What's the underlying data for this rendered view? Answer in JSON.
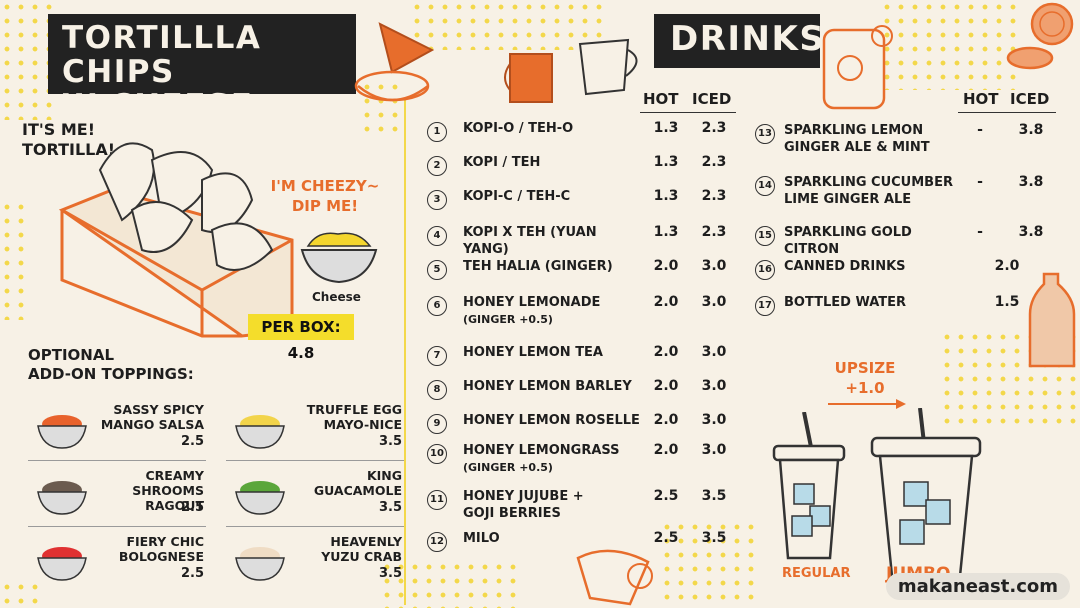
{
  "chips_section": {
    "title_line1": "TORTILLLA CHIPS",
    "title_line2": "W CHEESE SAUCE",
    "mascot_text_line1": "IT'S ME!",
    "mascot_text_line2": "TORTILLA!",
    "cheese_text_line1": "I'M CHEEZY~",
    "cheese_text_line2": "DIP ME!",
    "cheese_label": "Cheese",
    "price_label": "PER BOX: 4.8",
    "addon_title_line1": "OPTIONAL",
    "addon_title_line2": "ADD-ON TOPPINGS:",
    "toppings": [
      {
        "name_line1": "SASSY SPICY",
        "name_line2": "MANGO SALSA",
        "price": "2.5",
        "color": "#e8622c"
      },
      {
        "name_line1": "TRUFFLE EGG",
        "name_line2": "MAYO-NICE",
        "price": "3.5",
        "color": "#f2d44a"
      },
      {
        "name_line1": "CREAMY SHROOMS",
        "name_line2": "RAGOUT",
        "price": "2.5",
        "color": "#6b5b4f"
      },
      {
        "name_line1": "KING",
        "name_line2": "GUACAMOLE",
        "price": "3.5",
        "color": "#5aa63a"
      },
      {
        "name_line1": "FIERY CHIC",
        "name_line2": "BOLOGNESE",
        "price": "2.5",
        "color": "#e03131"
      },
      {
        "name_line1": "HEAVENLY",
        "name_line2": "YUZU CRAB",
        "price": "3.5",
        "color": "#efdcc4"
      }
    ]
  },
  "drinks_section": {
    "title": "DRINKS",
    "hot_label": "HOT",
    "iced_label": "ICED",
    "left_items": [
      {
        "num": "1",
        "name": "KOPI-O / TEH-O",
        "sub": "",
        "hot": "1.3",
        "iced": "2.3"
      },
      {
        "num": "2",
        "name": "KOPI / TEH",
        "sub": "",
        "hot": "1.3",
        "iced": "2.3"
      },
      {
        "num": "3",
        "name": "KOPI-C / TEH-C",
        "sub": "",
        "hot": "1.3",
        "iced": "2.3"
      },
      {
        "num": "4",
        "name": "KOPI X TEH (YUAN YANG)",
        "sub": "",
        "hot": "1.3",
        "iced": "2.3"
      },
      {
        "num": "5",
        "name": "TEH HALIA (GINGER)",
        "sub": "",
        "hot": "2.0",
        "iced": "3.0"
      },
      {
        "num": "6",
        "name": "HONEY LEMONADE",
        "sub": "(GINGER +0.5)",
        "hot": "2.0",
        "iced": "3.0"
      },
      {
        "num": "7",
        "name": "HONEY LEMON TEA",
        "sub": "",
        "hot": "2.0",
        "iced": "3.0"
      },
      {
        "num": "8",
        "name": "HONEY LEMON BARLEY",
        "sub": "",
        "hot": "2.0",
        "iced": "3.0"
      },
      {
        "num": "9",
        "name": "HONEY LEMON ROSELLE",
        "sub": "",
        "hot": "2.0",
        "iced": "3.0"
      },
      {
        "num": "10",
        "name": "HONEY LEMONGRASS",
        "sub": "(GINGER +0.5)",
        "hot": "2.0",
        "iced": "3.0"
      },
      {
        "num": "11",
        "name": "HONEY JUJUBE +",
        "sub": "GOJI BERRIES",
        "hot": "2.5",
        "iced": "3.5"
      },
      {
        "num": "12",
        "name": "MILO",
        "sub": "",
        "hot": "2.5",
        "iced": "3.5"
      }
    ],
    "right_items": [
      {
        "num": "13",
        "name": "SPARKLING LEMON",
        "sub": "GINGER ALE & MINT",
        "hot": "-",
        "iced": "3.8"
      },
      {
        "num": "14",
        "name": "SPARKLING CUCUMBER",
        "sub": "LIME GINGER ALE",
        "hot": "-",
        "iced": "3.8"
      },
      {
        "num": "15",
        "name": "SPARKLING GOLD CITRON",
        "sub": "",
        "hot": "-",
        "iced": "3.8"
      },
      {
        "num": "16",
        "name": "CANNED DRINKS",
        "sub": "",
        "hot": "",
        "iced": "2.0"
      },
      {
        "num": "17",
        "name": "BOTTLED WATER",
        "sub": "",
        "hot": "",
        "iced": "1.5"
      }
    ],
    "upsize_label": "UPSIZE",
    "upsize_price": "+1.0",
    "regular_label": "REGULAR",
    "jumbo_label": "JUMBO"
  },
  "watermark": "makaneast.com"
}
